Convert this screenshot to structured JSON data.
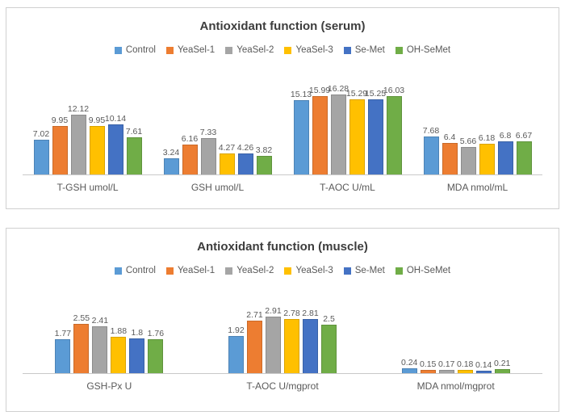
{
  "chart_data": [
    {
      "type": "bar",
      "title": "Antioxidant function (serum)",
      "categories": [
        "T-GSH umol/L",
        "GSH umol/L",
        "T-AOC U/mL",
        "MDA nmol/mL"
      ],
      "series": [
        {
          "name": "Control",
          "color": "#5B9BD5",
          "values": [
            7.02,
            3.24,
            15.13,
            7.68
          ]
        },
        {
          "name": "YeaSel-1",
          "color": "#ED7D31",
          "values": [
            9.95,
            6.16,
            15.99,
            6.4
          ]
        },
        {
          "name": "YeaSel-2",
          "color": "#A5A5A5",
          "values": [
            12.12,
            7.33,
            16.28,
            5.66
          ]
        },
        {
          "name": "YeaSel-3",
          "color": "#FFC000",
          "values": [
            9.95,
            4.27,
            15.29,
            6.18
          ]
        },
        {
          "name": "Se-Met",
          "color": "#4472C4",
          "values": [
            10.14,
            4.26,
            15.25,
            6.8
          ]
        },
        {
          "name": "OH-SeMet",
          "color": "#70AD47",
          "values": [
            7.61,
            3.82,
            16.03,
            6.67
          ]
        }
      ],
      "ylabel": "",
      "xlabel": "",
      "ylim": [
        0,
        17
      ],
      "grid": false,
      "legend_position": "top",
      "data_labels": true
    },
    {
      "type": "bar",
      "title": "Antioxidant function (muscle)",
      "categories": [
        "GSH-Px U",
        "T-AOC U/mgprot",
        "MDA nmol/mgprot"
      ],
      "series": [
        {
          "name": "Control",
          "color": "#5B9BD5",
          "values": [
            1.77,
            1.92,
            0.24
          ]
        },
        {
          "name": "YeaSel-1",
          "color": "#ED7D31",
          "values": [
            2.55,
            2.71,
            0.15
          ]
        },
        {
          "name": "YeaSel-2",
          "color": "#A5A5A5",
          "values": [
            2.41,
            2.91,
            0.17
          ]
        },
        {
          "name": "YeaSel-3",
          "color": "#FFC000",
          "values": [
            1.88,
            2.78,
            0.18
          ]
        },
        {
          "name": "Se-Met",
          "color": "#4472C4",
          "values": [
            1.8,
            2.81,
            0.14
          ]
        },
        {
          "name": "OH-SeMet",
          "color": "#70AD47",
          "values": [
            1.76,
            2.5,
            0.21
          ]
        }
      ],
      "ylabel": "",
      "xlabel": "",
      "ylim": [
        0,
        3.1
      ],
      "grid": false,
      "legend_position": "top",
      "data_labels": true
    }
  ]
}
